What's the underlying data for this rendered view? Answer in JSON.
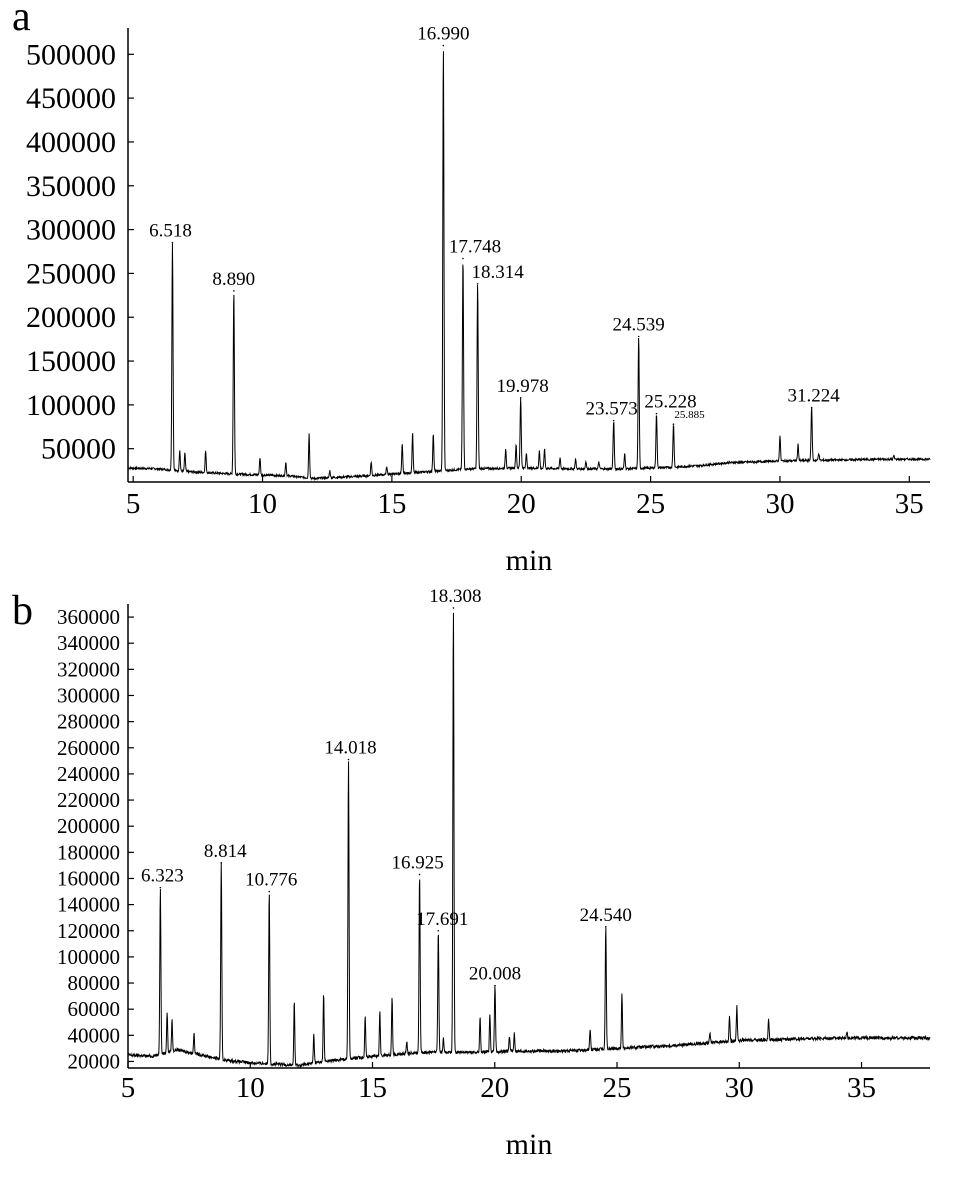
{
  "chart_data": [
    {
      "type": "line",
      "panel_label": "a",
      "xlabel": "min",
      "ylabel": "",
      "xlim": [
        4.8,
        35.8
      ],
      "ylim": [
        12000,
        530000
      ],
      "x_ticks": [
        5,
        10,
        15,
        20,
        25,
        30,
        35
      ],
      "y_ticks": [
        50000,
        100000,
        150000,
        200000,
        250000,
        300000,
        350000,
        400000,
        450000,
        500000
      ],
      "baseline": [
        [
          4.8,
          28000
        ],
        [
          6,
          27000
        ],
        [
          7,
          24000
        ],
        [
          9,
          21000
        ],
        [
          11,
          19000
        ],
        [
          12,
          16000
        ],
        [
          14,
          19000
        ],
        [
          16,
          23000
        ],
        [
          18,
          27000
        ],
        [
          20,
          28000
        ],
        [
          22,
          27000
        ],
        [
          24,
          27000
        ],
        [
          26,
          29000
        ],
        [
          27,
          31000
        ],
        [
          28,
          34000
        ],
        [
          30,
          36000
        ],
        [
          32,
          37000
        ],
        [
          34,
          38000
        ],
        [
          35.8,
          38000
        ]
      ],
      "peaks": [
        {
          "t": 6.518,
          "height": 285000,
          "label": "6.518"
        },
        {
          "t": 8.89,
          "height": 230000,
          "label": "8.890"
        },
        {
          "t": 16.99,
          "height": 510000,
          "label": "16.990"
        },
        {
          "t": 17.748,
          "height": 267000,
          "label": "17.748"
        },
        {
          "t": 18.314,
          "height": 238000,
          "label": "18.314"
        },
        {
          "t": 19.978,
          "height": 108000,
          "label": "19.978"
        },
        {
          "t": 23.573,
          "height": 82000,
          "label": "23.573"
        },
        {
          "t": 24.539,
          "height": 178000,
          "label": "24.539"
        },
        {
          "t": 25.228,
          "height": 90000,
          "label": "25.228"
        },
        {
          "t": 25.885,
          "height": 78000,
          "label": "25.885"
        },
        {
          "t": 31.224,
          "height": 97000,
          "label": "31.224"
        }
      ],
      "minor_peaks": [
        [
          6.8,
          48000
        ],
        [
          7.0,
          45000
        ],
        [
          7.8,
          48000
        ],
        [
          9.9,
          40000
        ],
        [
          10.9,
          35000
        ],
        [
          11.8,
          67000
        ],
        [
          12.6,
          25000
        ],
        [
          14.2,
          35000
        ],
        [
          14.8,
          30000
        ],
        [
          15.4,
          55000
        ],
        [
          15.8,
          68000
        ],
        [
          16.6,
          68000
        ],
        [
          19.4,
          50000
        ],
        [
          19.8,
          55000
        ],
        [
          20.2,
          45000
        ],
        [
          20.7,
          48000
        ],
        [
          20.9,
          50000
        ],
        [
          21.5,
          40000
        ],
        [
          22.1,
          38000
        ],
        [
          22.5,
          36000
        ],
        [
          23.0,
          35000
        ],
        [
          24.0,
          45000
        ],
        [
          30.0,
          65000
        ],
        [
          30.7,
          55000
        ],
        [
          31.5,
          45000
        ],
        [
          34.4,
          42000
        ]
      ]
    },
    {
      "type": "line",
      "panel_label": "b",
      "xlabel": "min",
      "ylabel": "",
      "xlim": [
        5.0,
        37.8
      ],
      "ylim": [
        15000,
        370000
      ],
      "x_ticks": [
        5,
        10,
        15,
        20,
        25,
        30,
        35
      ],
      "y_ticks": [
        20000,
        40000,
        60000,
        80000,
        100000,
        120000,
        140000,
        160000,
        180000,
        200000,
        220000,
        240000,
        260000,
        280000,
        300000,
        320000,
        340000,
        360000
      ],
      "baseline": [
        [
          5.0,
          25000
        ],
        [
          6,
          24000
        ],
        [
          7,
          29000
        ],
        [
          8,
          25000
        ],
        [
          9,
          21000
        ],
        [
          10,
          19000
        ],
        [
          11,
          18000
        ],
        [
          12,
          17000
        ],
        [
          13,
          20000
        ],
        [
          15,
          24000
        ],
        [
          17,
          27000
        ],
        [
          19,
          27000
        ],
        [
          21,
          28000
        ],
        [
          23,
          28000
        ],
        [
          25,
          30000
        ],
        [
          27,
          32000
        ],
        [
          28,
          33000
        ],
        [
          30,
          36000
        ],
        [
          32,
          37000
        ],
        [
          34,
          38000
        ],
        [
          37.8,
          38000
        ]
      ],
      "peaks": [
        {
          "t": 6.323,
          "height": 153000,
          "label": "6.323"
        },
        {
          "t": 8.814,
          "height": 172000,
          "label": "8.814"
        },
        {
          "t": 10.776,
          "height": 150000,
          "label": "10.776"
        },
        {
          "t": 14.018,
          "height": 251000,
          "label": "14.018"
        },
        {
          "t": 16.925,
          "height": 163000,
          "label": "16.925"
        },
        {
          "t": 17.691,
          "height": 120000,
          "label": "17.691"
        },
        {
          "t": 18.308,
          "height": 367000,
          "label": "18.308"
        },
        {
          "t": 20.008,
          "height": 78000,
          "label": "20.008"
        },
        {
          "t": 24.54,
          "height": 123000,
          "label": "24.540"
        }
      ],
      "minor_peaks": [
        [
          6.6,
          58000
        ],
        [
          6.8,
          52000
        ],
        [
          7.7,
          42000
        ],
        [
          11.8,
          66000
        ],
        [
          12.6,
          41000
        ],
        [
          13.0,
          72000
        ],
        [
          14.7,
          56000
        ],
        [
          15.3,
          58000
        ],
        [
          15.8,
          70000
        ],
        [
          16.4,
          35000
        ],
        [
          17.9,
          38000
        ],
        [
          19.4,
          54000
        ],
        [
          19.8,
          56000
        ],
        [
          20.6,
          40000
        ],
        [
          20.8,
          42000
        ],
        [
          23.9,
          45000
        ],
        [
          25.2,
          72000
        ],
        [
          28.8,
          42000
        ],
        [
          29.6,
          55000
        ],
        [
          29.9,
          62000
        ],
        [
          31.2,
          52000
        ],
        [
          34.4,
          43000
        ]
      ]
    }
  ]
}
